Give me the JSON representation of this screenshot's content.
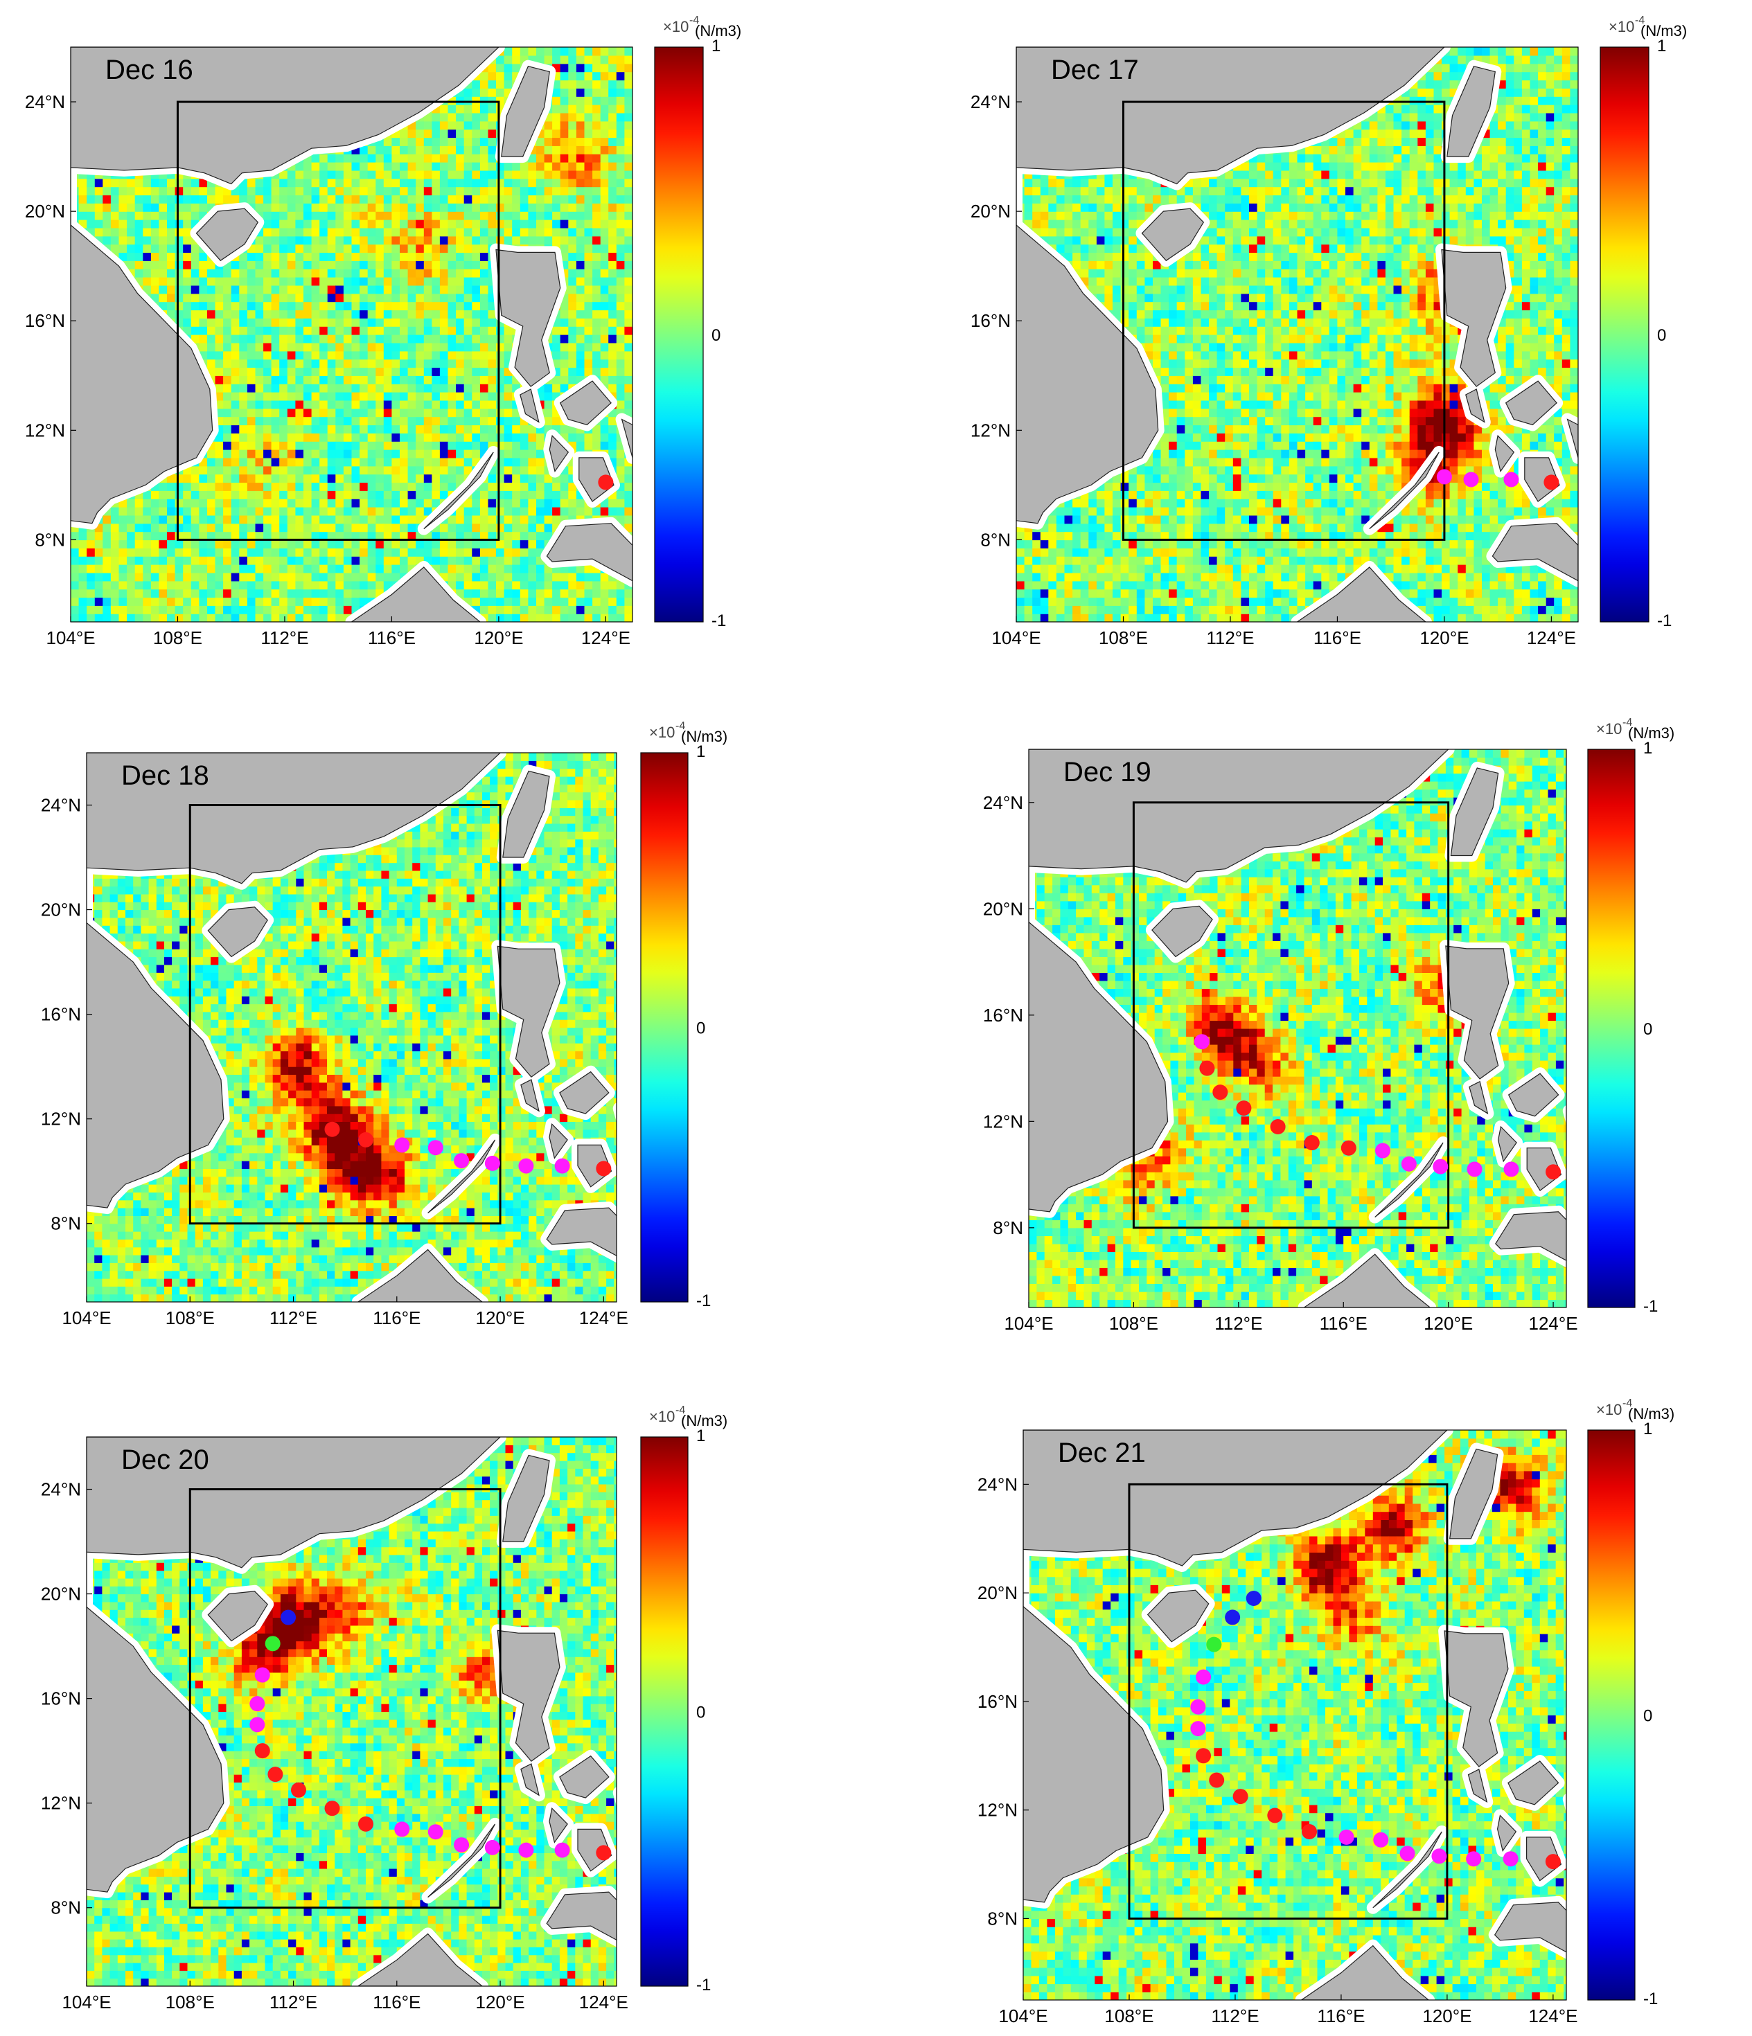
{
  "colorbar": {
    "max_label": "1",
    "mid_label": "0",
    "min_label": "-1",
    "exponent_label": "×10",
    "exponent_power": "-4",
    "unit_label": "(N/m3)",
    "colormap": "jet"
  },
  "colors": {
    "land": "#b4b4b4",
    "ocean_base": "#6fe37f",
    "coast_fringe": "#ffffff",
    "box": "#000000",
    "track_red": "#ff1a1a",
    "track_magenta": "#ff1aff",
    "track_green": "#33ee33",
    "track_blue": "#1a1aee"
  },
  "chart_data": [
    {
      "type": "heatmap",
      "title": "Dec 16",
      "xlim": [
        104,
        125
      ],
      "ylim": [
        5,
        26
      ],
      "xticks": [
        "104°E",
        "108°E",
        "112°E",
        "116°E",
        "120°E",
        "124°E"
      ],
      "yticks": [
        "8°N",
        "12°N",
        "16°N",
        "20°N",
        "24°N"
      ],
      "box": {
        "lon": [
          108,
          120
        ],
        "lat": [
          8,
          24
        ]
      },
      "hotspots": [
        {
          "lon": 117,
          "lat": 19,
          "value": 0.4
        },
        {
          "lon": 123,
          "lat": 22,
          "value": 0.5
        },
        {
          "lon": 111,
          "lat": 11,
          "value": 0.3
        }
      ],
      "track": [
        {
          "lon": 124.0,
          "lat": 10.1,
          "color": "red"
        }
      ]
    },
    {
      "type": "heatmap",
      "title": "Dec 17",
      "xlim": [
        104,
        125
      ],
      "ylim": [
        5,
        26
      ],
      "xticks": [
        "104°E",
        "108°E",
        "112°E",
        "116°E",
        "120°E",
        "124°E"
      ],
      "yticks": [
        "8°N",
        "12°N",
        "16°N",
        "20°N",
        "24°N"
      ],
      "box": {
        "lon": [
          108,
          120
        ],
        "lat": [
          8,
          24
        ]
      },
      "hotspots": [
        {
          "lon": 120,
          "lat": 12.5,
          "value": 1.0
        },
        {
          "lon": 119.5,
          "lat": 10.8,
          "value": 0.8
        },
        {
          "lon": 120,
          "lat": 17,
          "value": 0.7
        }
      ],
      "track": [
        {
          "lon": 124.0,
          "lat": 10.1,
          "color": "red"
        },
        {
          "lon": 122.5,
          "lat": 10.2,
          "color": "magenta"
        },
        {
          "lon": 121.0,
          "lat": 10.2,
          "color": "magenta"
        },
        {
          "lon": 120.0,
          "lat": 10.3,
          "color": "magenta"
        }
      ]
    },
    {
      "type": "heatmap",
      "title": "Dec 18",
      "xlim": [
        104,
        124.5
      ],
      "ylim": [
        5,
        26
      ],
      "xticks": [
        "104°E",
        "108°E",
        "112°E",
        "116°E",
        "120°E",
        "124°E"
      ],
      "yticks": [
        "8°N",
        "12°N",
        "16°N",
        "20°N",
        "24°N"
      ],
      "box": {
        "lon": [
          108,
          120
        ],
        "lat": [
          8,
          24
        ]
      },
      "hotspots": [
        {
          "lon": 113.5,
          "lat": 11.8,
          "value": 1.0
        },
        {
          "lon": 112,
          "lat": 14,
          "value": 0.9
        },
        {
          "lon": 115.3,
          "lat": 9.7,
          "value": 0.9
        },
        {
          "lon": 114,
          "lat": 10.5,
          "value": 0.6
        }
      ],
      "track": [
        {
          "lon": 124.0,
          "lat": 10.1,
          "color": "red"
        },
        {
          "lon": 122.4,
          "lat": 10.2,
          "color": "magenta"
        },
        {
          "lon": 121.0,
          "lat": 10.2,
          "color": "magenta"
        },
        {
          "lon": 119.7,
          "lat": 10.3,
          "color": "magenta"
        },
        {
          "lon": 118.5,
          "lat": 10.4,
          "color": "magenta"
        },
        {
          "lon": 117.5,
          "lat": 10.9,
          "color": "magenta"
        },
        {
          "lon": 116.2,
          "lat": 11.0,
          "color": "magenta"
        },
        {
          "lon": 114.8,
          "lat": 11.2,
          "color": "red"
        },
        {
          "lon": 113.5,
          "lat": 11.6,
          "color": "red"
        }
      ]
    },
    {
      "type": "heatmap",
      "title": "Dec 19",
      "xlim": [
        104,
        124.5
      ],
      "ylim": [
        5,
        26
      ],
      "xticks": [
        "104°E",
        "108°E",
        "112°E",
        "116°E",
        "120°E",
        "124°E"
      ],
      "yticks": [
        "8°N",
        "12°N",
        "16°N",
        "20°N",
        "24°N"
      ],
      "box": {
        "lon": [
          108,
          120
        ],
        "lat": [
          8,
          24
        ]
      },
      "hotspots": [
        {
          "lon": 111.5,
          "lat": 15.3,
          "value": 1.0
        },
        {
          "lon": 113,
          "lat": 14,
          "value": 0.5
        },
        {
          "lon": 108.5,
          "lat": 10.5,
          "value": 0.6
        },
        {
          "lon": 120,
          "lat": 17,
          "value": 0.6
        }
      ],
      "track": [
        {
          "lon": 124.0,
          "lat": 10.1,
          "color": "red"
        },
        {
          "lon": 122.4,
          "lat": 10.2,
          "color": "magenta"
        },
        {
          "lon": 121.0,
          "lat": 10.2,
          "color": "magenta"
        },
        {
          "lon": 119.7,
          "lat": 10.3,
          "color": "magenta"
        },
        {
          "lon": 118.5,
          "lat": 10.4,
          "color": "magenta"
        },
        {
          "lon": 117.5,
          "lat": 10.9,
          "color": "magenta"
        },
        {
          "lon": 116.2,
          "lat": 11.0,
          "color": "red"
        },
        {
          "lon": 114.8,
          "lat": 11.2,
          "color": "red"
        },
        {
          "lon": 113.5,
          "lat": 11.8,
          "color": "red"
        },
        {
          "lon": 112.2,
          "lat": 12.5,
          "color": "red"
        },
        {
          "lon": 111.3,
          "lat": 13.1,
          "color": "red"
        },
        {
          "lon": 110.8,
          "lat": 14.0,
          "color": "red"
        },
        {
          "lon": 110.6,
          "lat": 15.0,
          "color": "magenta"
        }
      ]
    },
    {
      "type": "heatmap",
      "title": "Dec 20",
      "xlim": [
        104,
        124.5
      ],
      "ylim": [
        5,
        26
      ],
      "xticks": [
        "104°E",
        "108°E",
        "112°E",
        "116°E",
        "120°E",
        "124°E"
      ],
      "yticks": [
        "8°N",
        "12°N",
        "16°N",
        "20°N",
        "24°N"
      ],
      "box": {
        "lon": [
          108,
          120
        ],
        "lat": [
          8,
          24
        ]
      },
      "hotspots": [
        {
          "lon": 112,
          "lat": 19,
          "value": 1.0
        },
        {
          "lon": 111,
          "lat": 17.8,
          "value": 0.9
        },
        {
          "lon": 114,
          "lat": 19.5,
          "value": 0.6
        },
        {
          "lon": 119.5,
          "lat": 17,
          "value": 0.5
        }
      ],
      "track": [
        {
          "lon": 124.0,
          "lat": 10.1,
          "color": "red"
        },
        {
          "lon": 122.4,
          "lat": 10.2,
          "color": "magenta"
        },
        {
          "lon": 121.0,
          "lat": 10.2,
          "color": "magenta"
        },
        {
          "lon": 119.7,
          "lat": 10.3,
          "color": "magenta"
        },
        {
          "lon": 118.5,
          "lat": 10.4,
          "color": "magenta"
        },
        {
          "lon": 117.5,
          "lat": 10.9,
          "color": "magenta"
        },
        {
          "lon": 116.2,
          "lat": 11.0,
          "color": "magenta"
        },
        {
          "lon": 114.8,
          "lat": 11.2,
          "color": "red"
        },
        {
          "lon": 113.5,
          "lat": 11.8,
          "color": "red"
        },
        {
          "lon": 112.2,
          "lat": 12.5,
          "color": "red"
        },
        {
          "lon": 111.3,
          "lat": 13.1,
          "color": "red"
        },
        {
          "lon": 110.8,
          "lat": 14.0,
          "color": "red"
        },
        {
          "lon": 110.6,
          "lat": 15.0,
          "color": "magenta"
        },
        {
          "lon": 110.6,
          "lat": 15.8,
          "color": "magenta"
        },
        {
          "lon": 110.8,
          "lat": 16.9,
          "color": "magenta"
        },
        {
          "lon": 111.2,
          "lat": 18.1,
          "color": "green"
        },
        {
          "lon": 111.8,
          "lat": 19.1,
          "color": "blue"
        }
      ]
    },
    {
      "type": "heatmap",
      "title": "Dec 21",
      "xlim": [
        104,
        124.5
      ],
      "ylim": [
        5,
        26
      ],
      "xticks": [
        "104°E",
        "108°E",
        "112°E",
        "116°E",
        "120°E",
        "124°E"
      ],
      "yticks": [
        "8°N",
        "12°N",
        "16°N",
        "20°N",
        "24°N"
      ],
      "box": {
        "lon": [
          108,
          120
        ],
        "lat": [
          8,
          24
        ]
      },
      "hotspots": [
        {
          "lon": 115.5,
          "lat": 21,
          "value": 1.0
        },
        {
          "lon": 118,
          "lat": 22.4,
          "value": 0.8
        },
        {
          "lon": 122.5,
          "lat": 24,
          "value": 0.8
        },
        {
          "lon": 116.5,
          "lat": 19,
          "value": 0.5
        }
      ],
      "track": [
        {
          "lon": 124.0,
          "lat": 10.1,
          "color": "red"
        },
        {
          "lon": 122.4,
          "lat": 10.2,
          "color": "magenta"
        },
        {
          "lon": 121.0,
          "lat": 10.2,
          "color": "magenta"
        },
        {
          "lon": 119.7,
          "lat": 10.3,
          "color": "magenta"
        },
        {
          "lon": 118.5,
          "lat": 10.4,
          "color": "magenta"
        },
        {
          "lon": 117.5,
          "lat": 10.9,
          "color": "magenta"
        },
        {
          "lon": 116.2,
          "lat": 11.0,
          "color": "magenta"
        },
        {
          "lon": 114.8,
          "lat": 11.2,
          "color": "red"
        },
        {
          "lon": 113.5,
          "lat": 11.8,
          "color": "red"
        },
        {
          "lon": 112.2,
          "lat": 12.5,
          "color": "red"
        },
        {
          "lon": 111.3,
          "lat": 13.1,
          "color": "red"
        },
        {
          "lon": 110.8,
          "lat": 14.0,
          "color": "red"
        },
        {
          "lon": 110.6,
          "lat": 15.0,
          "color": "magenta"
        },
        {
          "lon": 110.6,
          "lat": 15.8,
          "color": "magenta"
        },
        {
          "lon": 110.8,
          "lat": 16.9,
          "color": "magenta"
        },
        {
          "lon": 111.2,
          "lat": 18.1,
          "color": "green"
        },
        {
          "lon": 111.9,
          "lat": 19.1,
          "color": "blue"
        },
        {
          "lon": 112.7,
          "lat": 19.8,
          "color": "blue"
        }
      ]
    }
  ]
}
